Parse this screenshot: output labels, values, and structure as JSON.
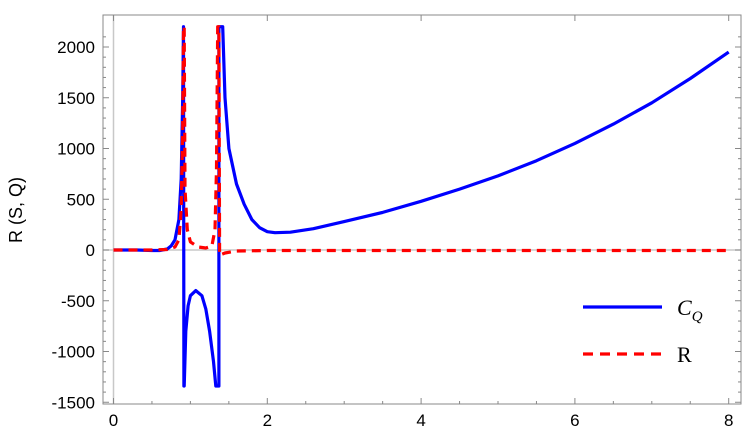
{
  "chart_data": {
    "type": "line",
    "title": "",
    "xlabel": "",
    "ylabel": "R (S, Q)",
    "xlim": [
      -0.15,
      8.3
    ],
    "ylim": [
      -1560,
      2260
    ],
    "xticks": [
      0,
      2,
      4,
      6,
      8
    ],
    "yticks": [
      -1500,
      -1000,
      -500,
      0,
      500,
      1000,
      1500,
      2000
    ],
    "grid": false,
    "legend_position": "bottom-right",
    "series": [
      {
        "name": "C_Q",
        "legend_main": "C",
        "legend_sub": "Q",
        "color": "#0000ff",
        "style": "solid",
        "x": [
          0,
          0.3,
          0.5,
          0.6,
          0.7,
          0.75,
          0.8,
          0.85,
          0.88,
          0.9,
          0.91,
          0.915,
          0.92,
          0.94,
          0.97,
          1.0,
          1.07,
          1.15,
          1.2,
          1.25,
          1.3,
          1.33,
          1.37,
          1.37,
          1.39,
          1.42,
          1.45,
          1.5,
          1.6,
          1.7,
          1.8,
          1.9,
          2.0,
          2.1,
          2.3,
          2.6,
          3.0,
          3.5,
          4.0,
          4.5,
          5.0,
          5.5,
          6.0,
          6.5,
          7.0,
          7.5,
          8.0
        ],
        "y": [
          0,
          0,
          -5,
          -5,
          10,
          40,
          100,
          300,
          700,
          1500,
          2200,
          -1340,
          -1340,
          -800,
          -550,
          -450,
          -400,
          -450,
          -580,
          -800,
          -1100,
          -1340,
          -1340,
          2200,
          2200,
          2200,
          1500,
          1000,
          650,
          450,
          300,
          220,
          180,
          170,
          175,
          210,
          280,
          370,
          480,
          600,
          730,
          880,
          1050,
          1240,
          1450,
          1690,
          1950
        ]
      },
      {
        "name": "R",
        "color": "#ff0000",
        "style": "dashed",
        "x": [
          0,
          0.5,
          0.7,
          0.8,
          0.85,
          0.88,
          0.9,
          0.91,
          0.92,
          0.93,
          0.96,
          1.0,
          1.1,
          1.2,
          1.28,
          1.32,
          1.34,
          1.355,
          1.37,
          1.38,
          1.45,
          1.6,
          2.0,
          8.0
        ],
        "y": [
          0,
          0,
          5,
          30,
          100,
          400,
          1200,
          2200,
          2200,
          600,
          200,
          80,
          30,
          20,
          40,
          200,
          800,
          2200,
          2200,
          -50,
          -30,
          -10,
          -5,
          -5
        ]
      }
    ]
  }
}
